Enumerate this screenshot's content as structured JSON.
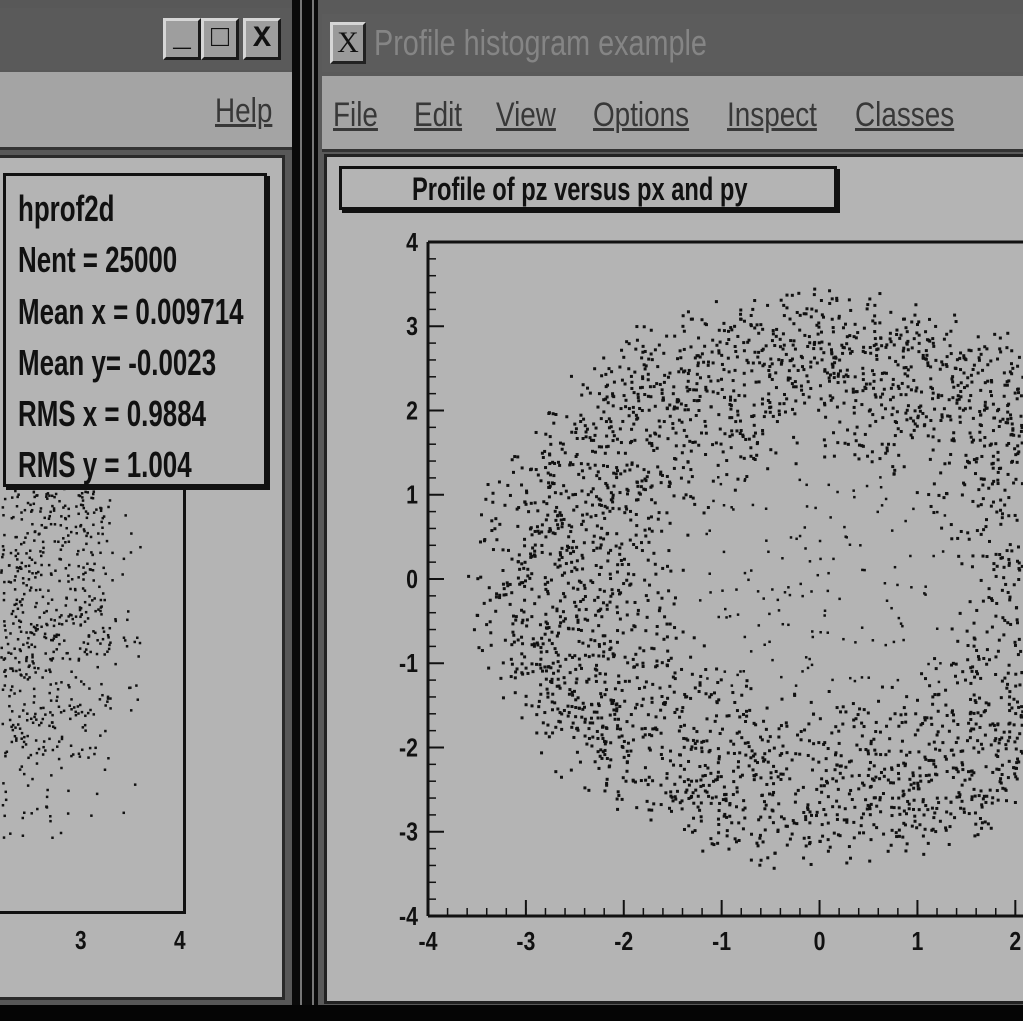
{
  "left_window": {
    "controls": {
      "minimize": "_",
      "maximize": "□",
      "close": "X"
    },
    "menu": {
      "help": "Help"
    },
    "stats_box": {
      "name": "hprof2d",
      "lines": [
        "Nent = 25000",
        "Mean x = 0.009714",
        "Mean y= -0.0023",
        "RMS x  = 0.9884",
        "RMS y =  1.004"
      ]
    },
    "x_ticks": [
      "3",
      "4"
    ]
  },
  "right_window": {
    "title_icon": "X",
    "title": "Profile histogram example",
    "menu": [
      "File",
      "Edit",
      "View",
      "Options",
      "Inspect",
      "Classes"
    ],
    "plot_title": "Profile of pz versus px and py"
  },
  "chart_data": {
    "type": "scatter",
    "title": "Profile of pz versus px and py",
    "xlabel": "",
    "ylabel": "",
    "xlim": [
      -4,
      2
    ],
    "ylim": [
      -4,
      4
    ],
    "x_ticks": [
      -4,
      -3,
      -2,
      -1,
      0,
      1,
      2
    ],
    "y_ticks": [
      -4,
      -3,
      -2,
      -1,
      0,
      1,
      2,
      3,
      4
    ],
    "grid": false,
    "ring_center": [
      0,
      0
    ],
    "ring_inner_radius": 1.3,
    "ring_outer_radius": 3.5,
    "colors": {
      "marker": "#111111",
      "background": "#b4b4b4",
      "axis": "#111111"
    }
  }
}
